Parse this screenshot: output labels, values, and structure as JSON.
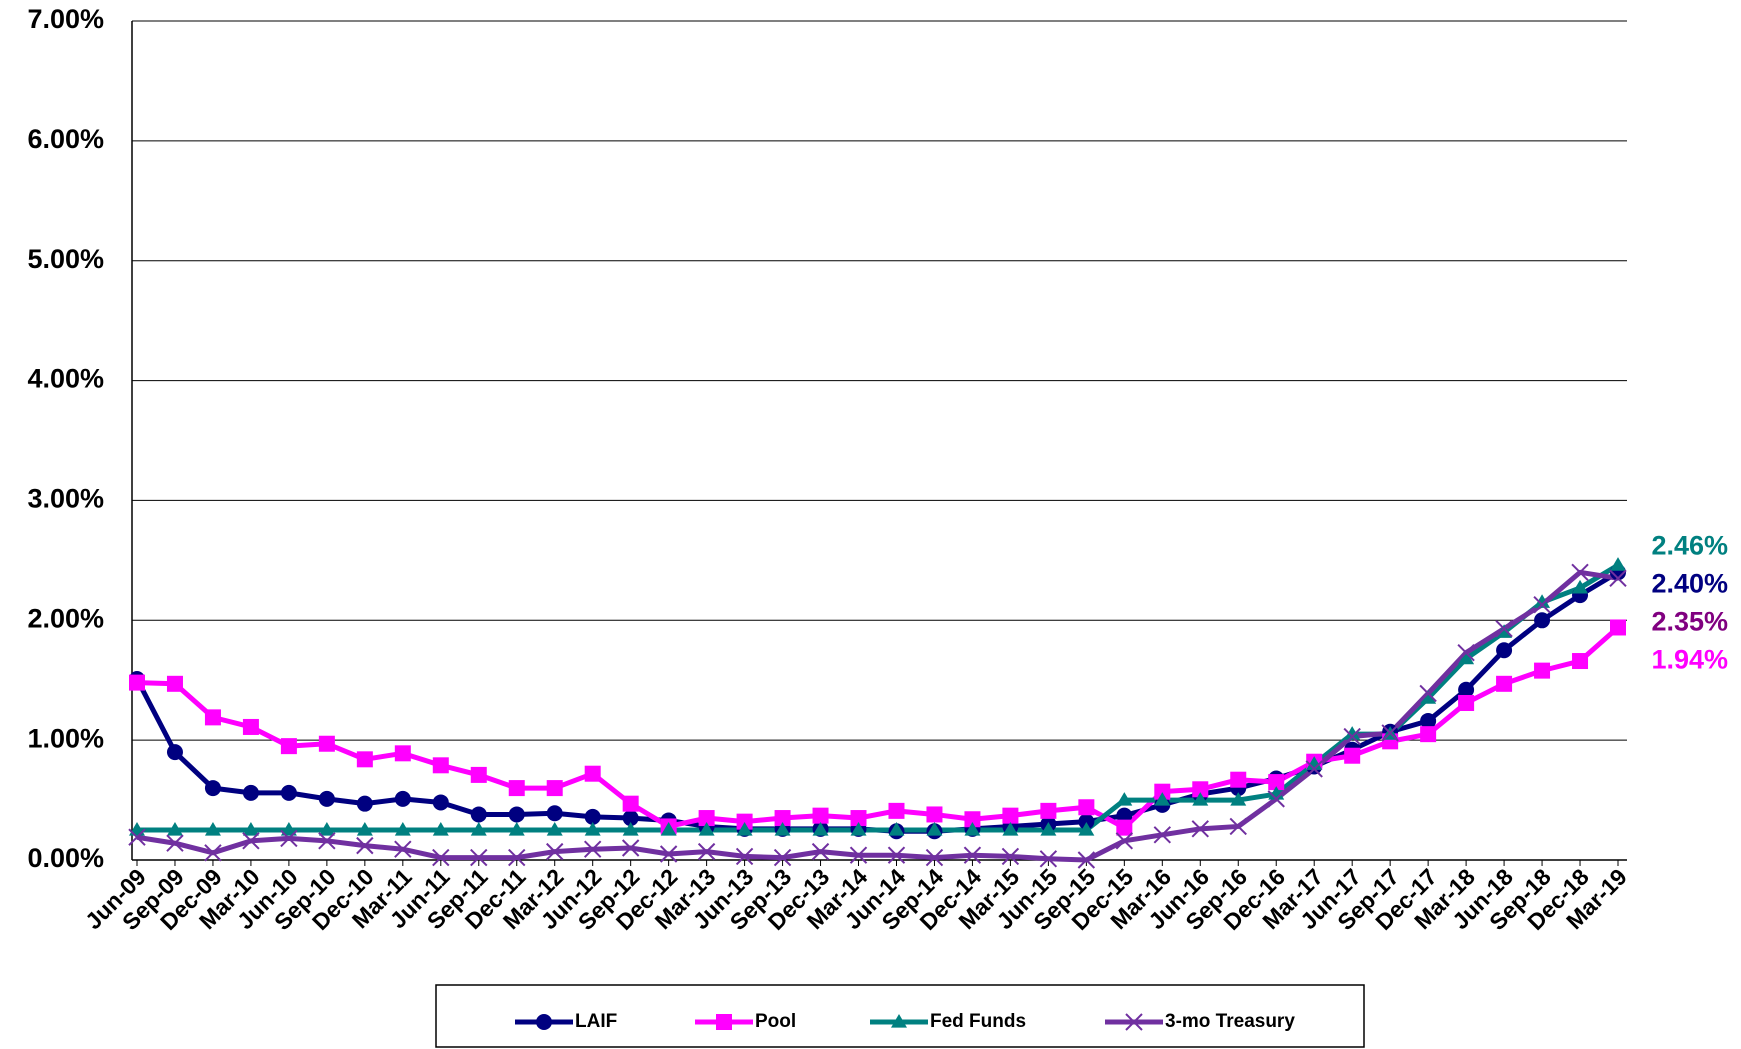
{
  "chart_data": {
    "type": "line",
    "categories": [
      "Jun-09",
      "Sep-09",
      "Dec-09",
      "Mar-10",
      "Jun-10",
      "Sep-10",
      "Dec-10",
      "Mar-11",
      "Jun-11",
      "Sep-11",
      "Dec-11",
      "Mar-12",
      "Jun-12",
      "Sep-12",
      "Dec-12",
      "Mar-13",
      "Jun-13",
      "Sep-13",
      "Dec-13",
      "Mar-14",
      "Jun-14",
      "Sep-14",
      "Dec-14",
      "Mar-15",
      "Jun-15",
      "Sep-15",
      "Dec-15",
      "Mar-16",
      "Jun-16",
      "Sep-16",
      "Dec-16",
      "Mar-17",
      "Jun-17",
      "Sep-17",
      "Dec-17",
      "Mar-18",
      "Jun-18",
      "Sep-18",
      "Dec-18",
      "Mar-19"
    ],
    "series": [
      {
        "name": "LAIF",
        "color": "#000080",
        "marker": "circle",
        "values": [
          1.51,
          0.9,
          0.6,
          0.56,
          0.56,
          0.51,
          0.47,
          0.51,
          0.48,
          0.38,
          0.38,
          0.39,
          0.36,
          0.35,
          0.33,
          0.28,
          0.26,
          0.26,
          0.26,
          0.26,
          0.24,
          0.24,
          0.26,
          0.28,
          0.3,
          0.32,
          0.37,
          0.46,
          0.55,
          0.6,
          0.68,
          0.78,
          0.92,
          1.07,
          1.16,
          1.42,
          1.75,
          2.0,
          2.21,
          2.4
        ],
        "value_labels": [
          null,
          null,
          null,
          null,
          null,
          null,
          null,
          null,
          null,
          null,
          null,
          null,
          null,
          null,
          null,
          null,
          null,
          null,
          null,
          null,
          null,
          null,
          null,
          null,
          null,
          null,
          null,
          null,
          null,
          null,
          null,
          null,
          null,
          null,
          null,
          null,
          null,
          null,
          null,
          "2.40%"
        ]
      },
      {
        "name": "Pool",
        "color": "#ff00ff",
        "marker": "square",
        "values": [
          1.48,
          1.47,
          1.19,
          1.11,
          0.95,
          0.97,
          0.84,
          0.89,
          0.79,
          0.71,
          0.6,
          0.6,
          0.72,
          0.47,
          0.28,
          0.35,
          0.32,
          0.35,
          0.37,
          0.35,
          0.41,
          0.38,
          0.34,
          0.37,
          0.41,
          0.44,
          0.27,
          0.57,
          0.59,
          0.67,
          0.65,
          0.82,
          0.87,
          0.99,
          1.05,
          1.31,
          1.47,
          1.58,
          1.66,
          1.94
        ],
        "value_labels": [
          null,
          null,
          null,
          null,
          null,
          null,
          null,
          null,
          null,
          null,
          null,
          null,
          null,
          null,
          null,
          null,
          null,
          null,
          null,
          null,
          null,
          null,
          null,
          null,
          null,
          null,
          null,
          null,
          null,
          null,
          null,
          null,
          null,
          null,
          null,
          null,
          null,
          null,
          null,
          "1.94%"
        ]
      },
      {
        "name": "Fed Funds",
        "color": "#008080",
        "marker": "triangle",
        "values": [
          0.25,
          0.25,
          0.25,
          0.25,
          0.25,
          0.25,
          0.25,
          0.25,
          0.25,
          0.25,
          0.25,
          0.25,
          0.25,
          0.25,
          0.25,
          0.25,
          0.25,
          0.25,
          0.25,
          0.25,
          0.25,
          0.25,
          0.25,
          0.25,
          0.25,
          0.25,
          0.5,
          0.5,
          0.5,
          0.5,
          0.55,
          0.8,
          1.05,
          1.05,
          1.35,
          1.68,
          1.9,
          2.15,
          2.27,
          2.46
        ],
        "value_labels": [
          null,
          null,
          null,
          null,
          null,
          null,
          null,
          null,
          null,
          null,
          null,
          null,
          null,
          null,
          null,
          null,
          null,
          null,
          null,
          null,
          null,
          null,
          null,
          null,
          null,
          null,
          null,
          null,
          null,
          null,
          null,
          null,
          null,
          null,
          null,
          null,
          null,
          null,
          null,
          "2.46%"
        ]
      },
      {
        "name": "3-mo Treasury",
        "color": "#7030a0",
        "label_color": "#800080",
        "marker": "x",
        "values": [
          0.19,
          0.14,
          0.06,
          0.16,
          0.18,
          0.16,
          0.12,
          0.09,
          0.02,
          0.02,
          0.02,
          0.07,
          0.09,
          0.1,
          0.05,
          0.07,
          0.03,
          0.02,
          0.07,
          0.04,
          0.04,
          0.02,
          0.04,
          0.03,
          0.01,
          0.0,
          0.16,
          0.21,
          0.26,
          0.28,
          0.51,
          0.76,
          1.03,
          1.06,
          1.39,
          1.73,
          1.93,
          2.13,
          2.4,
          2.35
        ],
        "value_labels": [
          null,
          null,
          null,
          null,
          null,
          null,
          null,
          null,
          null,
          null,
          null,
          null,
          null,
          null,
          null,
          null,
          null,
          null,
          null,
          null,
          null,
          null,
          null,
          null,
          null,
          null,
          null,
          null,
          null,
          null,
          null,
          null,
          null,
          null,
          null,
          null,
          null,
          null,
          null,
          "2.35%"
        ]
      }
    ],
    "ylim": [
      0,
      7
    ],
    "yticks": [
      {
        "value": 0,
        "label": "0.00%"
      },
      {
        "value": 1,
        "label": "1.00%"
      },
      {
        "value": 2,
        "label": "2.00%"
      },
      {
        "value": 3,
        "label": "3.00%"
      },
      {
        "value": 4,
        "label": "4.00%"
      },
      {
        "value": 5,
        "label": "5.00%"
      },
      {
        "value": 6,
        "label": "6.00%"
      },
      {
        "value": 7,
        "label": "7.00%"
      }
    ],
    "grid": true,
    "legend": "bottom"
  }
}
